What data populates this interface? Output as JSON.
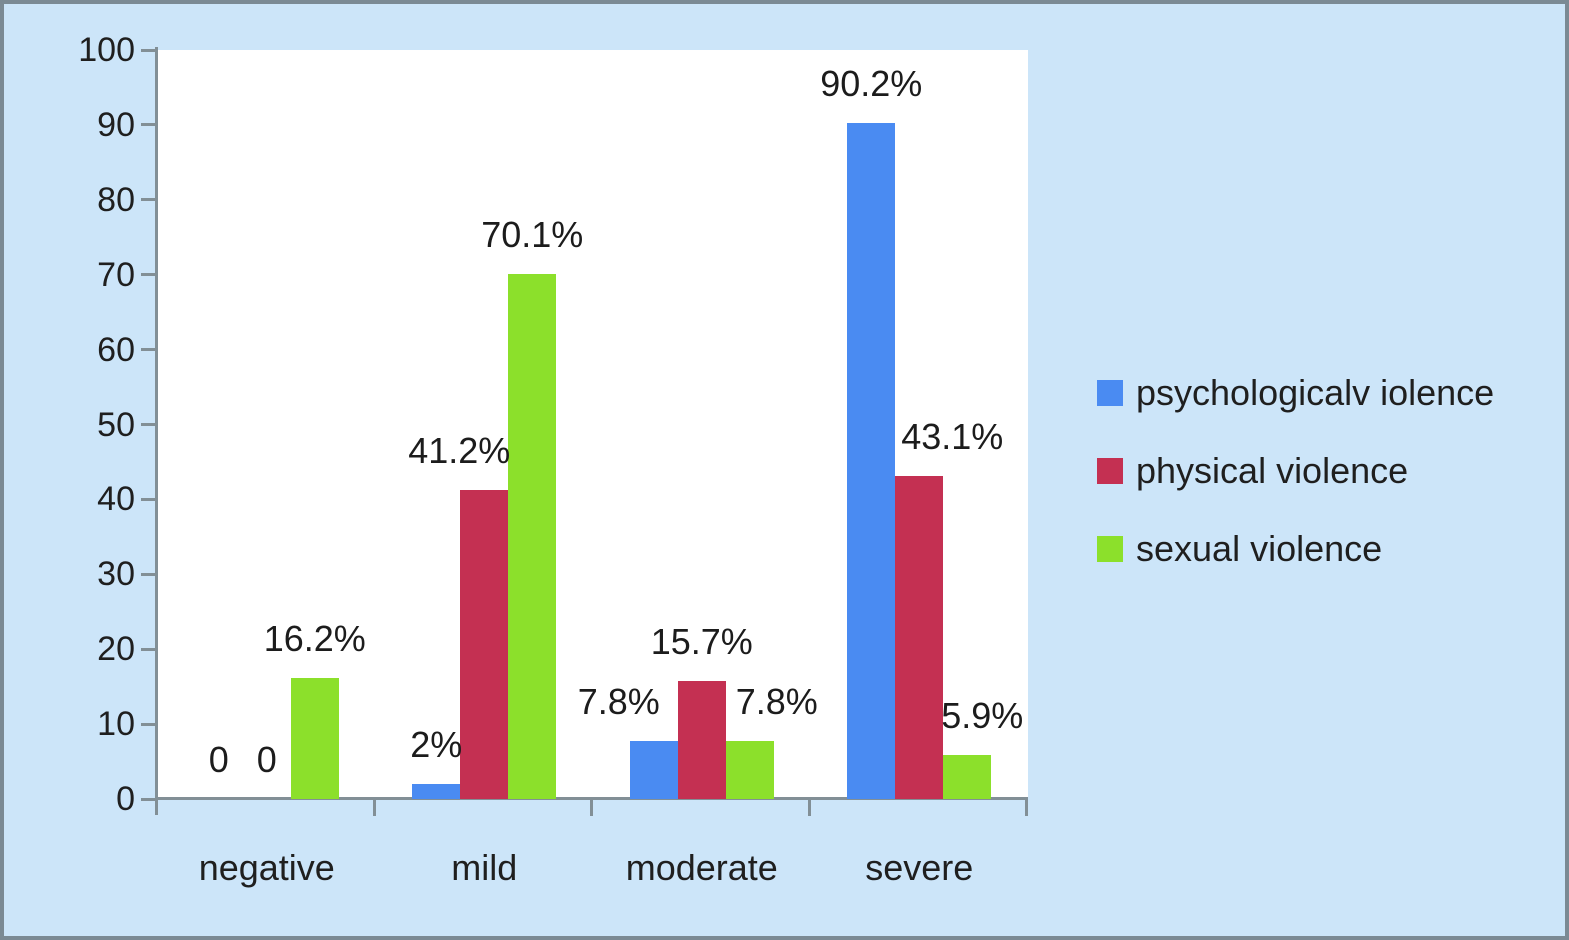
{
  "colors": {
    "page_background": "#cce5f9",
    "frame_border": "#7b8a94",
    "plot_background": "#ffffff",
    "axis": "#828f96",
    "text": "#1f1f1f"
  },
  "chart_data": {
    "type": "bar",
    "title": "",
    "xlabel": "",
    "ylabel": "",
    "categories": [
      "negative",
      "mild",
      "moderate",
      "severe"
    ],
    "series": [
      {
        "name": "psychologicalv iolence",
        "color": "#4a8bf2",
        "values": [
          0,
          2,
          7.8,
          90.2
        ],
        "labels": [
          "0",
          "2%",
          "7.8%",
          "90.2%"
        ],
        "label_dx": [
          0,
          0,
          -35,
          0
        ]
      },
      {
        "name": "physical violence",
        "color": "#c43052",
        "values": [
          0,
          41.2,
          15.7,
          43.1
        ],
        "labels": [
          "0",
          "41.2%",
          "15.7%",
          "43.1%"
        ],
        "label_dx": [
          0,
          -25,
          0,
          33
        ]
      },
      {
        "name": "sexual violence",
        "color": "#8ce02b",
        "values": [
          16.2,
          70.1,
          7.8,
          5.9
        ],
        "labels": [
          "16.2%",
          "70.1%",
          "7.8%",
          "5.9%"
        ],
        "label_dx": [
          0,
          0,
          27,
          15
        ]
      }
    ],
    "y_axis": {
      "min": 0,
      "max": 100,
      "step": 10,
      "tick_labels": [
        "0",
        "10",
        "20",
        "30",
        "40",
        "50",
        "60",
        "70",
        "80",
        "90",
        "100"
      ]
    },
    "grid": "off",
    "legend_position": "right"
  }
}
